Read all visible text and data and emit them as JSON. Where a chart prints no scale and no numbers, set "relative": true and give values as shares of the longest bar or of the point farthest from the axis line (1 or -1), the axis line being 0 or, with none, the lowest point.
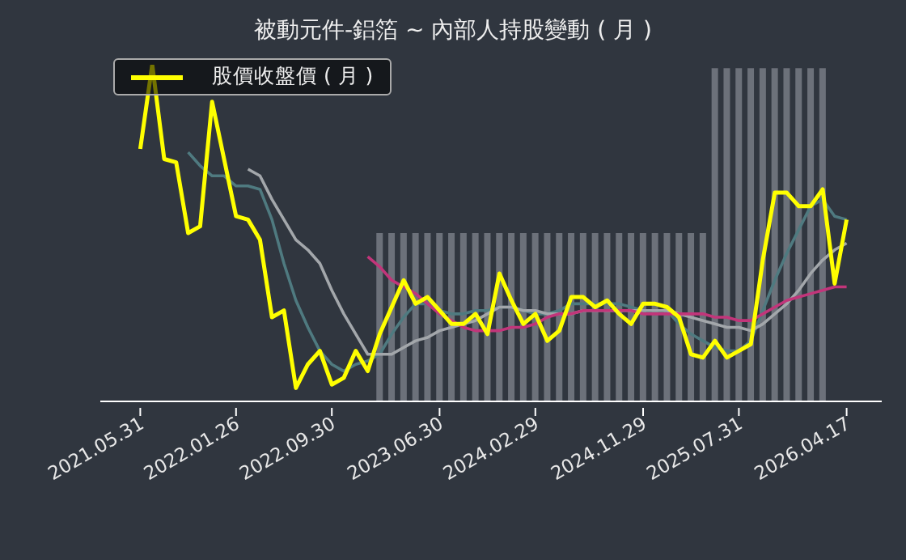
{
  "chart_data": {
    "type": "line",
    "title": "被動元件-鋁箔 ~ 內部人持股變動 ( 月 )",
    "relative": true,
    "legend": "top left",
    "categories": [
      "2021.05.31",
      null,
      null,
      null,
      null,
      null,
      null,
      null,
      "2022.01.26",
      null,
      null,
      null,
      null,
      null,
      null,
      null,
      "2022.09.30",
      null,
      null,
      null,
      null,
      null,
      null,
      null,
      null,
      "2023.06.30",
      null,
      null,
      null,
      null,
      null,
      null,
      null,
      "2024.02.29",
      null,
      null,
      null,
      null,
      null,
      null,
      null,
      null,
      "2024.11.29",
      null,
      null,
      null,
      null,
      null,
      null,
      null,
      "2025.07.31",
      null,
      null,
      null,
      null,
      null,
      null,
      null,
      null,
      "2026.04.17"
    ],
    "series": [
      {
        "type": "bar",
        "color": "#6c717a",
        "values": [
          null,
          null,
          null,
          null,
          null,
          null,
          null,
          null,
          null,
          null,
          null,
          null,
          null,
          null,
          null,
          null,
          null,
          null,
          null,
          null,
          0.5,
          0.5,
          0.5,
          0.5,
          0.5,
          0.5,
          0.5,
          0.5,
          0.5,
          0.5,
          0.5,
          0.5,
          0.5,
          0.5,
          0.5,
          0.5,
          0.5,
          0.5,
          0.5,
          0.5,
          0.5,
          0.5,
          0.5,
          0.5,
          0.5,
          0.5,
          0.5,
          0.5,
          0.99,
          0.99,
          0.99,
          0.99,
          0.99,
          0.99,
          0.99,
          0.99,
          0.99,
          0.99,
          null,
          null
        ]
      },
      {
        "color": "#4f7a80",
        "values": [
          null,
          null,
          null,
          null,
          0.74,
          0.7,
          0.67,
          0.67,
          0.64,
          0.64,
          0.63,
          0.54,
          0.41,
          0.3,
          0.22,
          0.15,
          0.11,
          0.09,
          0.11,
          0.12,
          0.14,
          0.2,
          0.25,
          0.29,
          0.29,
          0.27,
          0.26,
          0.26,
          0.27,
          0.27,
          0.28,
          0.28,
          0.27,
          0.26,
          0.26,
          0.27,
          0.29,
          0.29,
          0.29,
          0.29,
          0.29,
          0.28,
          0.27,
          0.27,
          0.27,
          0.23,
          0.2,
          0.18,
          0.16,
          0.15,
          0.15,
          0.18,
          0.27,
          0.36,
          0.44,
          0.51,
          0.58,
          0.6,
          0.55,
          0.54
        ]
      },
      {
        "color": "#a3a7ab",
        "values": [
          null,
          null,
          null,
          null,
          null,
          null,
          null,
          null,
          null,
          0.69,
          0.67,
          0.6,
          0.54,
          0.48,
          0.45,
          0.41,
          0.33,
          0.26,
          0.2,
          0.14,
          0.14,
          0.14,
          0.16,
          0.18,
          0.19,
          0.21,
          0.22,
          0.23,
          0.24,
          0.26,
          0.28,
          0.28,
          0.27,
          0.27,
          0.26,
          0.26,
          0.26,
          0.27,
          0.27,
          0.27,
          0.27,
          0.27,
          0.27,
          0.27,
          0.27,
          0.26,
          0.25,
          0.24,
          0.23,
          0.22,
          0.22,
          0.21,
          0.23,
          0.26,
          0.29,
          0.33,
          0.38,
          0.42,
          0.45,
          0.47
        ]
      },
      {
        "color": "#c2357a",
        "values": [
          null,
          null,
          null,
          null,
          null,
          null,
          null,
          null,
          null,
          null,
          null,
          null,
          null,
          null,
          null,
          null,
          null,
          null,
          null,
          0.43,
          0.4,
          0.36,
          0.34,
          0.32,
          0.29,
          0.26,
          0.24,
          0.22,
          0.21,
          0.21,
          0.21,
          0.22,
          0.22,
          0.23,
          0.25,
          0.26,
          0.26,
          0.27,
          0.27,
          0.27,
          0.27,
          0.27,
          0.26,
          0.26,
          0.26,
          0.26,
          0.26,
          0.26,
          0.25,
          0.25,
          0.24,
          0.24,
          0.26,
          0.28,
          0.3,
          0.31,
          0.32,
          0.33,
          0.34,
          0.34
        ]
      },
      {
        "name": "股價收盤價 ( 月 )",
        "color": "#ffff00",
        "values": [
          0.75,
          1.0,
          0.72,
          0.71,
          0.5,
          0.52,
          0.89,
          0.72,
          0.55,
          0.54,
          0.48,
          0.25,
          0.27,
          0.04,
          0.11,
          0.15,
          0.05,
          0.07,
          0.15,
          0.09,
          0.2,
          0.28,
          0.36,
          0.29,
          0.31,
          0.27,
          0.23,
          0.23,
          0.26,
          0.2,
          0.38,
          0.3,
          0.23,
          0.26,
          0.18,
          0.21,
          0.31,
          0.31,
          0.28,
          0.3,
          0.26,
          0.23,
          0.29,
          0.29,
          0.28,
          0.25,
          0.14,
          0.13,
          0.18,
          0.13,
          0.15,
          0.17,
          0.42,
          0.62,
          0.62,
          0.58,
          0.58,
          0.63,
          0.35,
          0.54
        ]
      }
    ]
  }
}
